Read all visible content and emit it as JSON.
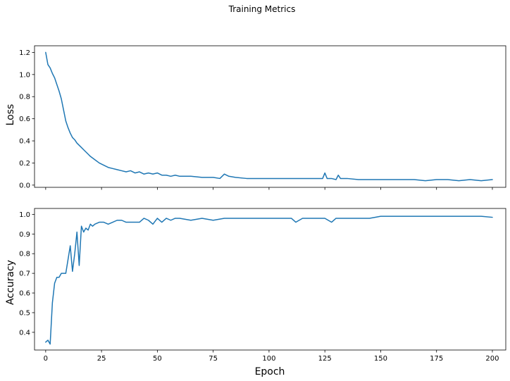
{
  "chart_data": {
    "type": "line",
    "title": "Training Metrics",
    "xlabel": "Epoch",
    "xlim": [
      -5,
      206
    ],
    "xticks": [
      0,
      25,
      50,
      75,
      100,
      125,
      150,
      175,
      200
    ],
    "panels": [
      {
        "ylabel": "Loss",
        "ylim": [
          -0.02,
          1.26
        ],
        "yticks": [
          0.0,
          0.2,
          0.4,
          0.6,
          0.8,
          1.0,
          1.2
        ],
        "series": [
          {
            "color": "#1f77b4",
            "x": [
              0,
              1,
              2,
              3,
              4,
              5,
              6,
              7,
              8,
              9,
              10,
              11,
              12,
              13,
              14,
              15,
              16,
              17,
              18,
              19,
              20,
              22,
              24,
              26,
              28,
              30,
              32,
              34,
              36,
              38,
              40,
              42,
              44,
              46,
              48,
              50,
              52,
              54,
              56,
              58,
              60,
              65,
              70,
              75,
              78,
              80,
              82,
              85,
              90,
              95,
              100,
              105,
              110,
              115,
              120,
              124,
              125,
              126,
              128,
              130,
              131,
              132,
              135,
              140,
              145,
              150,
              155,
              160,
              165,
              170,
              175,
              180,
              185,
              190,
              195,
              200
            ],
            "y": [
              1.2,
              1.09,
              1.06,
              1.01,
              0.97,
              0.91,
              0.85,
              0.78,
              0.68,
              0.58,
              0.52,
              0.47,
              0.43,
              0.41,
              0.38,
              0.36,
              0.34,
              0.32,
              0.3,
              0.28,
              0.26,
              0.23,
              0.2,
              0.18,
              0.16,
              0.15,
              0.14,
              0.13,
              0.12,
              0.13,
              0.11,
              0.12,
              0.1,
              0.11,
              0.1,
              0.11,
              0.09,
              0.09,
              0.08,
              0.09,
              0.08,
              0.08,
              0.07,
              0.07,
              0.06,
              0.1,
              0.08,
              0.07,
              0.06,
              0.06,
              0.06,
              0.06,
              0.06,
              0.06,
              0.06,
              0.06,
              0.11,
              0.06,
              0.06,
              0.05,
              0.09,
              0.06,
              0.06,
              0.05,
              0.05,
              0.05,
              0.05,
              0.05,
              0.05,
              0.04,
              0.05,
              0.05,
              0.04,
              0.05,
              0.04,
              0.05
            ]
          }
        ]
      },
      {
        "ylabel": "Accuracy",
        "ylim": [
          0.31,
          1.03
        ],
        "yticks": [
          0.4,
          0.5,
          0.6,
          0.7,
          0.8,
          0.9,
          1.0
        ],
        "series": [
          {
            "color": "#1f77b4",
            "x": [
              0,
              1,
              2,
              3,
              4,
              5,
              6,
              7,
              8,
              9,
              10,
              11,
              12,
              13,
              14,
              15,
              16,
              17,
              18,
              19,
              20,
              21,
              22,
              24,
              26,
              28,
              30,
              32,
              34,
              36,
              38,
              40,
              42,
              44,
              46,
              48,
              50,
              52,
              54,
              56,
              58,
              60,
              65,
              70,
              75,
              80,
              85,
              90,
              95,
              100,
              105,
              110,
              112,
              115,
              120,
              125,
              128,
              130,
              135,
              140,
              145,
              150,
              155,
              160,
              165,
              170,
              175,
              180,
              185,
              190,
              195,
              200
            ],
            "y": [
              0.35,
              0.36,
              0.34,
              0.55,
              0.65,
              0.68,
              0.68,
              0.7,
              0.7,
              0.7,
              0.77,
              0.84,
              0.71,
              0.8,
              0.91,
              0.74,
              0.94,
              0.91,
              0.93,
              0.92,
              0.95,
              0.94,
              0.95,
              0.96,
              0.96,
              0.95,
              0.96,
              0.97,
              0.97,
              0.96,
              0.96,
              0.96,
              0.96,
              0.98,
              0.97,
              0.95,
              0.98,
              0.96,
              0.98,
              0.97,
              0.98,
              0.98,
              0.97,
              0.98,
              0.97,
              0.98,
              0.98,
              0.98,
              0.98,
              0.98,
              0.98,
              0.98,
              0.96,
              0.98,
              0.98,
              0.98,
              0.96,
              0.98,
              0.98,
              0.98,
              0.98,
              0.99,
              0.99,
              0.99,
              0.99,
              0.99,
              0.99,
              0.99,
              0.99,
              0.99,
              0.99,
              0.985
            ]
          }
        ]
      }
    ]
  }
}
